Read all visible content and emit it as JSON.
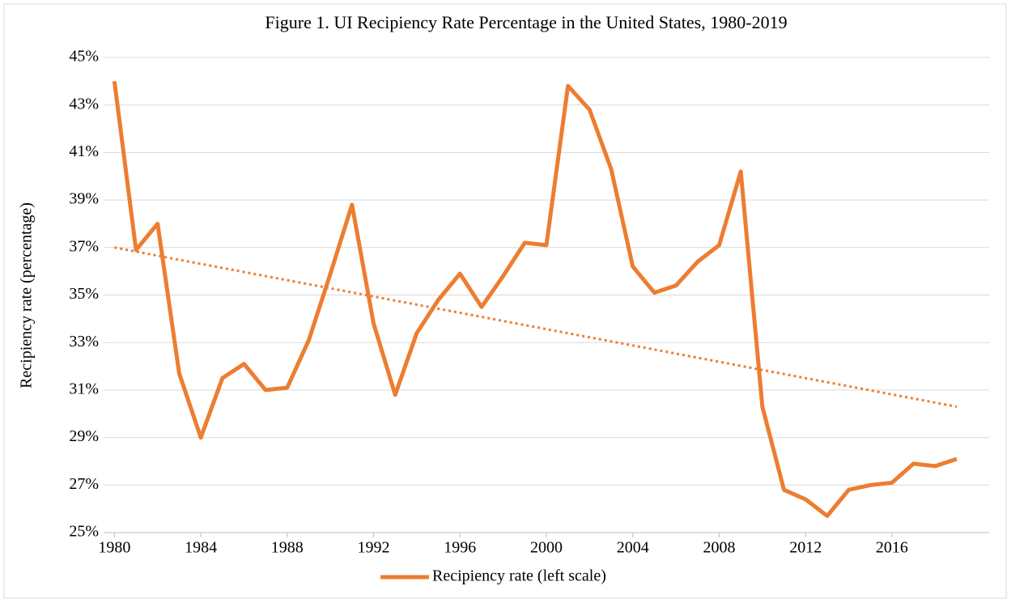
{
  "chart_data": {
    "type": "line",
    "title": "Figure 1. UI Recipiency Rate Percentage in the United States, 1980-2019",
    "ylabel": "Recipiency rate (percentage)",
    "x": [
      1980,
      1981,
      1982,
      1983,
      1984,
      1985,
      1986,
      1987,
      1988,
      1989,
      1990,
      1991,
      1992,
      1993,
      1994,
      1995,
      1996,
      1997,
      1998,
      1999,
      2000,
      2001,
      2002,
      2003,
      2004,
      2005,
      2006,
      2007,
      2008,
      2009,
      2010,
      2011,
      2012,
      2013,
      2014,
      2015,
      2016,
      2017,
      2018,
      2019
    ],
    "series": [
      {
        "name": "Recipiency rate (left scale)",
        "color": "#ed7d31",
        "values": [
          44.0,
          36.9,
          38.0,
          31.7,
          29.0,
          31.5,
          32.1,
          31.0,
          31.1,
          33.1,
          35.9,
          38.8,
          33.8,
          30.8,
          33.4,
          34.8,
          35.9,
          34.5,
          35.8,
          37.2,
          37.1,
          43.8,
          42.8,
          40.3,
          36.2,
          35.1,
          35.4,
          36.4,
          37.1,
          40.2,
          30.3,
          26.8,
          26.4,
          25.7,
          26.8,
          27.0,
          27.1,
          27.9,
          27.8,
          28.1
        ]
      }
    ],
    "trendline": {
      "x": [
        1980,
        2019
      ],
      "values": [
        37.0,
        30.3
      ],
      "color": "#ed7d31",
      "style": "dotted"
    },
    "xlim": [
      1979.5,
      2020.5
    ],
    "xticks": [
      1980,
      1984,
      1988,
      1992,
      1996,
      2000,
      2004,
      2008,
      2012,
      2016
    ],
    "ylim": [
      25,
      45
    ],
    "yticks": [
      {
        "value": 25,
        "label": "25%"
      },
      {
        "value": 27,
        "label": "27%"
      },
      {
        "value": 29,
        "label": "29%"
      },
      {
        "value": 31,
        "label": "31%"
      },
      {
        "value": 33,
        "label": "33%"
      },
      {
        "value": 35,
        "label": "35%"
      },
      {
        "value": 37,
        "label": "37%"
      },
      {
        "value": 39,
        "label": "39%"
      },
      {
        "value": 41,
        "label": "41%"
      },
      {
        "value": 43,
        "label": "43%"
      },
      {
        "value": 45,
        "label": "45%"
      }
    ],
    "grid": true,
    "legend": "bottom"
  }
}
